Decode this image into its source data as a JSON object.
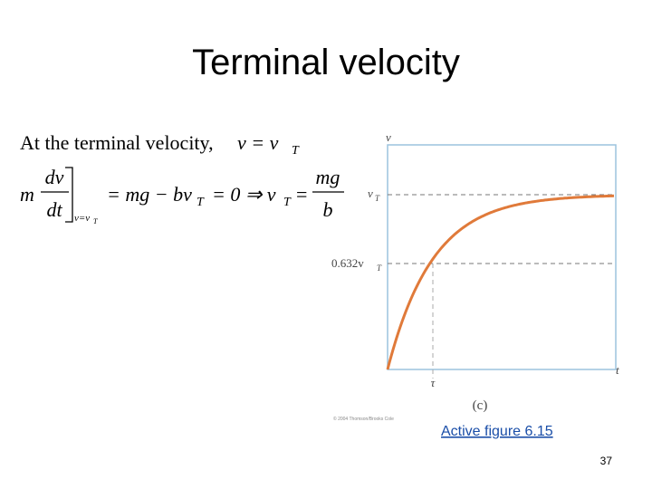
{
  "header": {
    "title": "Terminal velocity"
  },
  "equation": {
    "intro": "At the terminal velocity,",
    "condition": "v = v",
    "condition_sub": "T",
    "lhs_m": "m",
    "lhs_num": "dv",
    "lhs_den": "dt",
    "eval_at": "v=v",
    "eval_at_sub": "T",
    "middle": "= mg − bv",
    "middle_sub": "T",
    "middle_rest": "= 0 ⇒ v",
    "result_sub": "T",
    "result_eq": "=",
    "rhs_num": "mg",
    "rhs_den": "b"
  },
  "figure": {
    "y_axis_label": "v",
    "terminal_label": "v",
    "terminal_label_sub": "T",
    "fraction_label": "0.632v",
    "fraction_label_sub": "T",
    "tau_label": "τ",
    "x_axis_label": "t",
    "panel_label": "(c)",
    "credit": "© 2004 Thomson/Brooks Cole"
  },
  "link": "Active figure 6.15",
  "footer": {
    "page_number": "37"
  }
}
